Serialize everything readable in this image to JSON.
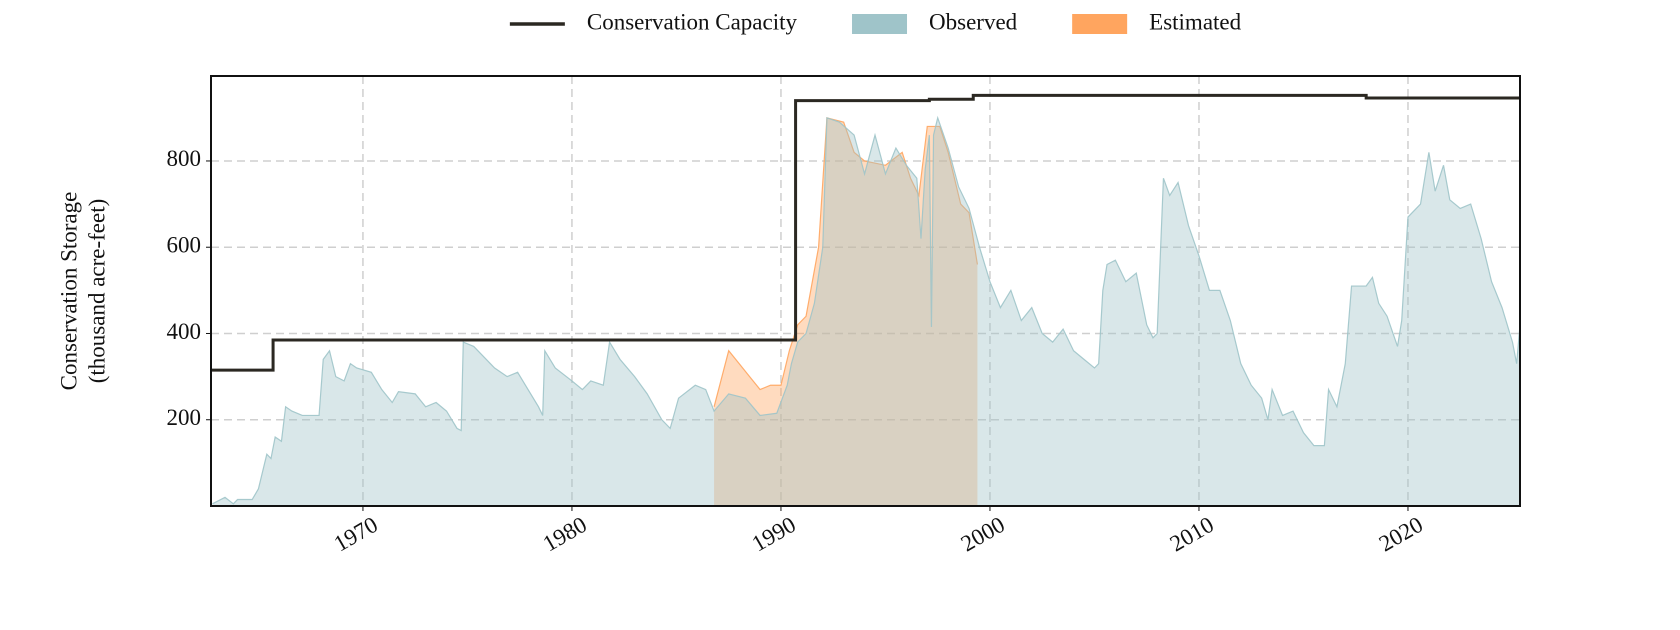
{
  "chart_data": {
    "type": "area",
    "ylabel": [
      "Conservation Storage",
      "(thousand acre-feet)"
    ],
    "xlim": [
      1962.73,
      2025.36
    ],
    "xticks": [
      1970,
      1980,
      1990,
      2000,
      2010,
      2020
    ],
    "ylim": [
      0,
      997
    ],
    "yticks": [
      200,
      400,
      600,
      800
    ],
    "grid": true,
    "legend": "top",
    "series": [
      {
        "name": "Conservation Capacity",
        "type": "line",
        "color": "#2b2822",
        "x": [
          1962.73,
          1965.7,
          1965.7,
          1990.7,
          1990.7,
          1997.1,
          1997.1,
          1999.2,
          1999.2,
          2018.0,
          2018.0,
          2025.36
        ],
        "values": [
          315,
          315,
          385,
          385,
          940,
          940,
          943,
          943,
          952,
          952,
          946,
          946
        ]
      },
      {
        "name": "Observed",
        "type": "area",
        "color": "#9fc4c9",
        "x": [
          1962.8,
          1963.4,
          1963.8,
          1964.0,
          1964.7,
          1965.0,
          1965.4,
          1965.6,
          1965.8,
          1966.1,
          1966.3,
          1966.6,
          1967.1,
          1967.9,
          1968.1,
          1968.4,
          1968.7,
          1969.1,
          1969.4,
          1969.7,
          1970.4,
          1970.9,
          1971.4,
          1971.7,
          1972.5,
          1973.0,
          1973.5,
          1974.0,
          1974.5,
          1974.7,
          1974.8,
          1975.3,
          1976.3,
          1976.9,
          1977.4,
          1977.9,
          1978.4,
          1978.6,
          1978.7,
          1979.2,
          1980.0,
          1980.5,
          1980.9,
          1981.5,
          1981.8,
          1982.3,
          1983.0,
          1983.6,
          1984.3,
          1984.7,
          1985.1,
          1985.9,
          1986.4,
          1986.8,
          1987.5,
          1988.3,
          1989.0,
          1989.8,
          1990.3,
          1990.5,
          1990.8,
          1991.2,
          1991.6,
          1992.0,
          1992.2,
          1992.8,
          1993.5,
          1994.0,
          1994.5,
          1995.0,
          1995.5,
          1996.0,
          1996.5,
          1996.7,
          1996.9,
          1997.1,
          1997.2,
          1997.3,
          1997.5,
          1998.0,
          1998.5,
          1999.0,
          1999.5,
          2000.0,
          2000.5,
          2001.0,
          2001.5,
          2002.0,
          2002.5,
          2003.0,
          2003.5,
          2004.0,
          2004.5,
          2005.0,
          2005.2,
          2005.4,
          2005.6,
          2006.0,
          2006.5,
          2007.0,
          2007.5,
          2007.8,
          2008.0,
          2008.3,
          2008.6,
          2009.0,
          2009.5,
          2010.0,
          2010.5,
          2011.0,
          2011.5,
          2012.0,
          2012.5,
          2013.0,
          2013.3,
          2013.5,
          2014.0,
          2014.5,
          2015.0,
          2015.5,
          2016.0,
          2016.2,
          2016.6,
          2017.0,
          2017.3,
          2018.0,
          2018.3,
          2018.6,
          2019.0,
          2019.5,
          2019.7,
          2020.0,
          2020.6,
          2021.0,
          2021.3,
          2021.7,
          2022.0,
          2022.5,
          2023.0,
          2023.5,
          2024.0,
          2024.5,
          2025.0,
          2025.2,
          2025.36
        ],
        "values": [
          5,
          20,
          5,
          15,
          15,
          40,
          120,
          110,
          160,
          150,
          230,
          220,
          210,
          210,
          340,
          360,
          300,
          290,
          330,
          320,
          310,
          270,
          240,
          265,
          260,
          230,
          240,
          220,
          180,
          175,
          380,
          370,
          320,
          300,
          310,
          270,
          230,
          210,
          360,
          320,
          290,
          270,
          290,
          280,
          380,
          340,
          300,
          260,
          200,
          180,
          250,
          280,
          270,
          220,
          260,
          250,
          210,
          215,
          280,
          330,
          380,
          400,
          470,
          600,
          900,
          890,
          860,
          770,
          860,
          770,
          830,
          790,
          760,
          620,
          780,
          860,
          415,
          860,
          900,
          830,
          740,
          690,
          600,
          520,
          460,
          500,
          430,
          460,
          400,
          380,
          410,
          360,
          340,
          320,
          330,
          500,
          560,
          570,
          520,
          540,
          420,
          390,
          400,
          760,
          720,
          750,
          650,
          580,
          500,
          500,
          430,
          330,
          280,
          250,
          200,
          270,
          210,
          220,
          170,
          140,
          140,
          270,
          230,
          330,
          510,
          510,
          530,
          470,
          440,
          370,
          430,
          670,
          700,
          820,
          730,
          790,
          710,
          690,
          700,
          620,
          520,
          460,
          380,
          330,
          420
        ]
      },
      {
        "name": "Estimated",
        "type": "area",
        "color": "#ffa55f",
        "x": [
          1986.8,
          1987.5,
          1988.0,
          1988.5,
          1989.0,
          1989.5,
          1990.0,
          1990.4,
          1990.8,
          1991.2,
          1991.8,
          1992.2,
          1993.0,
          1993.5,
          1994.0,
          1995.0,
          1995.8,
          1996.2,
          1996.6,
          1997.0,
          1997.6,
          1998.0,
          1998.6,
          1999.0,
          1999.4
        ],
        "values": [
          230,
          360,
          330,
          300,
          270,
          280,
          280,
          360,
          420,
          440,
          600,
          900,
          890,
          820,
          800,
          790,
          820,
          760,
          720,
          880,
          880,
          820,
          700,
          680,
          560
        ]
      }
    ]
  }
}
